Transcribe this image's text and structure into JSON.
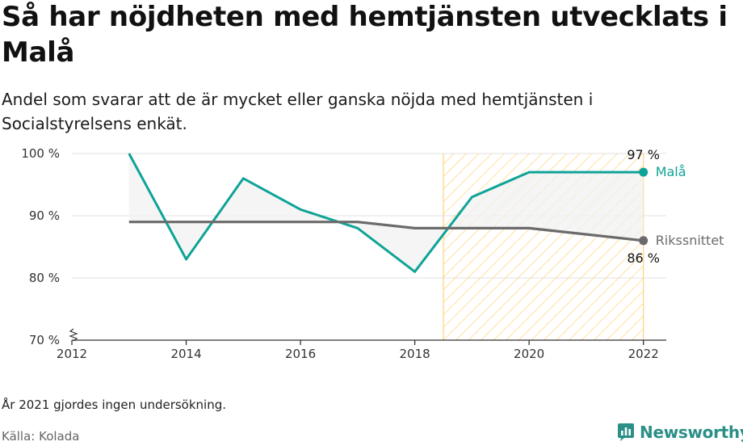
{
  "header": {
    "title": "Så har nöjdheten med hemtjänsten utvecklats i Malå",
    "subtitle": "Andel som svarar att de är mycket eller ganska nöjda med hemtjänsten i Socialstyrelsens enkät."
  },
  "footer": {
    "note": "År 2021 gjordes ingen undersökning.",
    "source": "Källa: Kolada",
    "brand": "Newsworthy"
  },
  "colors": {
    "mala": "#0fa398",
    "riket": "#6b6b6b",
    "highlight": "#ffd27a",
    "fill_between": "#f1f1f1",
    "grid": "#e2e2e2"
  },
  "chart_data": {
    "type": "line",
    "x_ticks": [
      "2012",
      "2014",
      "2016",
      "2018",
      "2020",
      "2022"
    ],
    "y_ticks": [
      "70 %",
      "80 %",
      "90 %",
      "100 %"
    ],
    "xlim": [
      2012,
      2022.4
    ],
    "ylim": [
      70,
      100
    ],
    "grid": true,
    "y_axis_break": true,
    "highlight_range": [
      2018.5,
      2022
    ],
    "series": [
      {
        "name": "Malå",
        "x": [
          2013,
          2014,
          2015,
          2016,
          2017,
          2018,
          2019,
          2020,
          2022
        ],
        "values": [
          100,
          83,
          96,
          91,
          88,
          81,
          93,
          97,
          97
        ],
        "end_label": "97 %"
      },
      {
        "name": "Rikssnittet",
        "x": [
          2013,
          2014,
          2015,
          2016,
          2017,
          2018,
          2019,
          2020,
          2022
        ],
        "values": [
          89,
          89,
          89,
          89,
          89,
          88,
          88,
          88,
          86
        ],
        "end_label": "86 %"
      }
    ]
  }
}
